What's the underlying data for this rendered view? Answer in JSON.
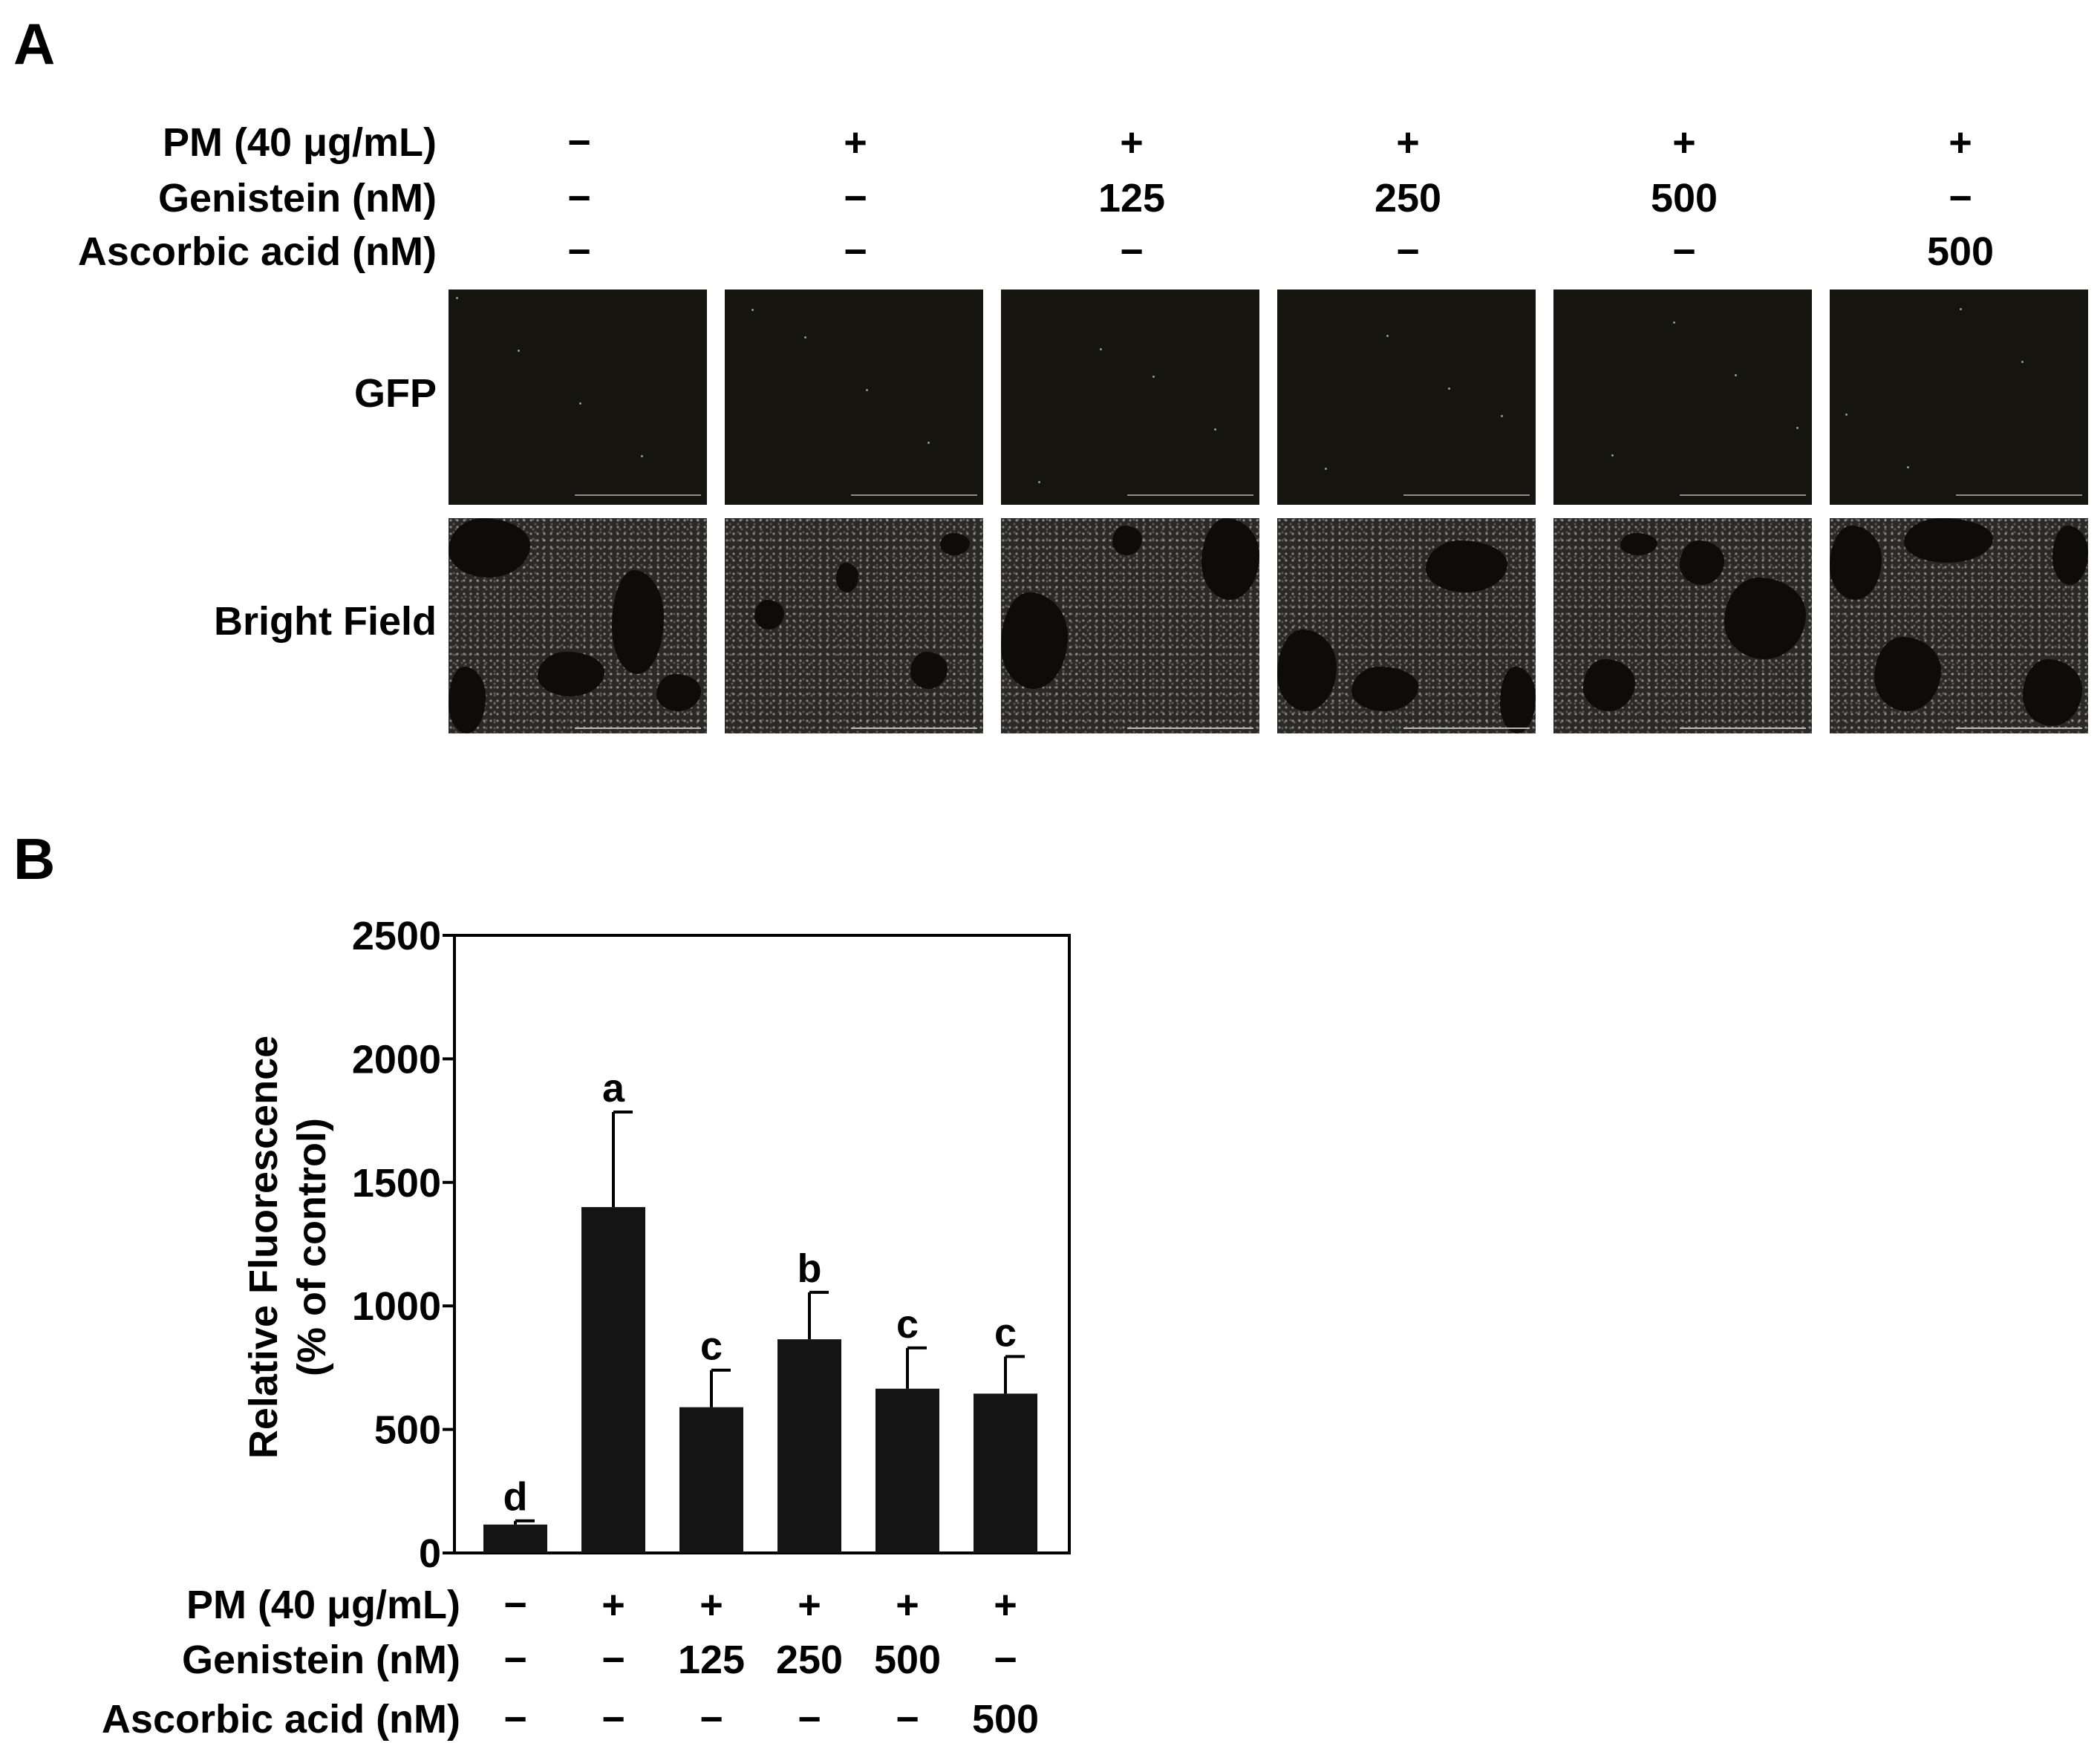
{
  "panel_a": {
    "letter": "A",
    "row_labels": {
      "pm": "PM (40 μg/mL)",
      "genistein": "Genistein (nM)",
      "ascorbic": "Ascorbic acid (nM)"
    },
    "conditions": [
      {
        "pm": "−",
        "genistein": "−",
        "ascorbic": "−"
      },
      {
        "pm": "+",
        "genistein": "−",
        "ascorbic": "−"
      },
      {
        "pm": "+",
        "genistein": "125",
        "ascorbic": "−"
      },
      {
        "pm": "+",
        "genistein": "250",
        "ascorbic": "−"
      },
      {
        "pm": "+",
        "genistein": "500",
        "ascorbic": "−"
      },
      {
        "pm": "+",
        "genistein": "−",
        "ascorbic": "500"
      }
    ],
    "image_rows": [
      "GFP",
      "Bright Field"
    ]
  },
  "panel_b": {
    "letter": "B",
    "row_labels": {
      "pm": "PM (40 μg/mL)",
      "genistein": "Genistein (nM)",
      "ascorbic": "Ascorbic acid (nM)"
    },
    "conditions": [
      {
        "pm": "−",
        "genistein": "−",
        "ascorbic": "−"
      },
      {
        "pm": "+",
        "genistein": "−",
        "ascorbic": "−"
      },
      {
        "pm": "+",
        "genistein": "125",
        "ascorbic": "−"
      },
      {
        "pm": "+",
        "genistein": "250",
        "ascorbic": "−"
      },
      {
        "pm": "+",
        "genistein": "500",
        "ascorbic": "−"
      },
      {
        "pm": "+",
        "genistein": "−",
        "ascorbic": "500"
      }
    ]
  },
  "chart_data": {
    "type": "bar",
    "title": "",
    "xlabel": "",
    "ylabel_line1": "Relative Fluorescence",
    "ylabel_line2": "(% of control)",
    "ylim": [
      0,
      2500
    ],
    "yticks": [
      0,
      500,
      1000,
      1500,
      2000,
      2500
    ],
    "grid": false,
    "legend": "none",
    "bar_color": "#141414",
    "values": [
      115,
      1400,
      590,
      865,
      665,
      645
    ],
    "errors": [
      15,
      385,
      150,
      190,
      165,
      150
    ],
    "significance_letters": [
      "d",
      "a",
      "c",
      "b",
      "c",
      "c"
    ]
  }
}
